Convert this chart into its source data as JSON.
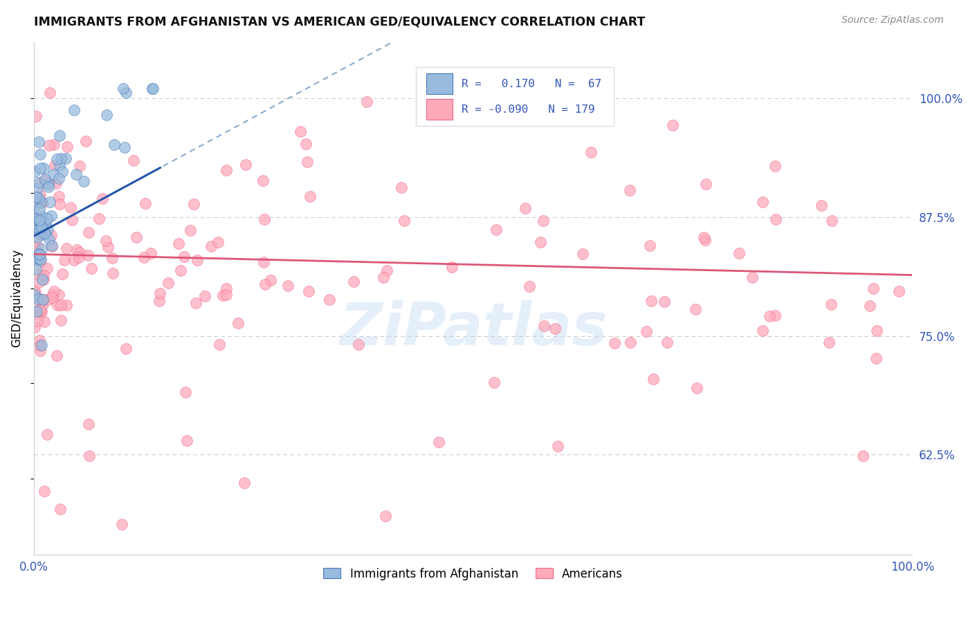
{
  "title": "IMMIGRANTS FROM AFGHANISTAN VS AMERICAN GED/EQUIVALENCY CORRELATION CHART",
  "source": "Source: ZipAtlas.com",
  "ylabel": "GED/Equivalency",
  "legend_label_blue": "Immigrants from Afghanistan",
  "legend_label_pink": "Americans",
  "R_blue": 0.17,
  "N_blue": 67,
  "R_pink": -0.09,
  "N_pink": 179,
  "xlim": [
    0.0,
    1.0
  ],
  "ylim": [
    0.52,
    1.06
  ],
  "yticks": [
    0.625,
    0.75,
    0.875,
    1.0
  ],
  "ytick_labels": [
    "62.5%",
    "75.0%",
    "87.5%",
    "100.0%"
  ],
  "blue_fill": "#99BBDD",
  "pink_fill": "#FFAABB",
  "blue_edge": "#4477BB",
  "pink_edge": "#EE6688",
  "blue_line_color": "#2255AA",
  "blue_dash_color": "#88AACE",
  "pink_line_color": "#DD5577",
  "watermark": "ZiPatlas",
  "grid_color": "#CCCCCC",
  "axis_color": "#CCCCCC",
  "tick_color": "#3355BB",
  "title_color": "#111111",
  "legend_box_color": "#DDDDDD"
}
